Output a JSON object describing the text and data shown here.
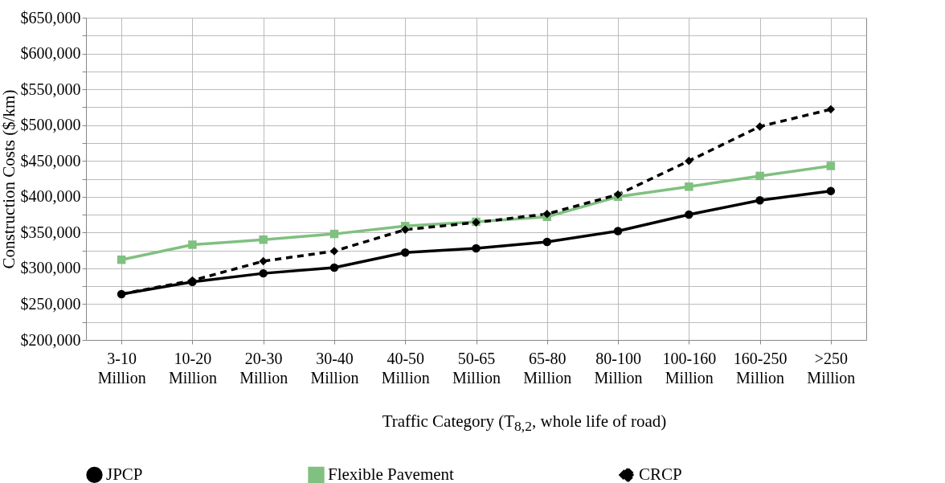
{
  "chart_data": {
    "type": "line",
    "ylabel": "Construction Costs ($/km)",
    "xlabel": "Traffic Category (T$_{8,2}$, whole life of road)",
    "categories": [
      "3-10 Million",
      "10-20 Million",
      "20-30 Million",
      "30-40 Million",
      "40-50 Million",
      "50-65 Million",
      "65-80 Million",
      "80-100 Million",
      "100-160 Million",
      "160-250 Million",
      ">250 Million"
    ],
    "series": [
      {
        "name": "JPCP",
        "color": "#000000",
        "marker": "circle",
        "line_style": "solid",
        "values": [
          264000,
          281000,
          293000,
          301000,
          322000,
          328000,
          337000,
          352000,
          375000,
          395000,
          408000
        ]
      },
      {
        "name": "Flexible Pavement",
        "color": "#80c080",
        "marker": "square",
        "line_style": "solid",
        "values": [
          312000,
          333000,
          340000,
          348000,
          359000,
          365000,
          372000,
          400000,
          414000,
          429000,
          443000
        ]
      },
      {
        "name": "CRCP",
        "color": "#000000",
        "marker": "diamond",
        "line_style": "dashed",
        "values": [
          264000,
          283000,
          310000,
          324000,
          354000,
          364000,
          376000,
          403000,
          450000,
          498000,
          522000
        ]
      }
    ],
    "ylim": [
      200000,
      650000
    ],
    "yticks": [
      {
        "value": 200000,
        "label": "$200,000"
      },
      {
        "value": 225000,
        "label": null
      },
      {
        "value": 250000,
        "label": "$250,000"
      },
      {
        "value": 275000,
        "label": null
      },
      {
        "value": 300000,
        "label": "$300,000"
      },
      {
        "value": 325000,
        "label": null
      },
      {
        "value": 350000,
        "label": "$350,000"
      },
      {
        "value": 375000,
        "label": null
      },
      {
        "value": 400000,
        "label": "$400,000"
      },
      {
        "value": 425000,
        "label": null
      },
      {
        "value": 450000,
        "label": "$450,000"
      },
      {
        "value": 475000,
        "label": null
      },
      {
        "value": 500000,
        "label": "$500,000"
      },
      {
        "value": 525000,
        "label": null
      },
      {
        "value": 550000,
        "label": "$550,000"
      },
      {
        "value": 575000,
        "label": null
      },
      {
        "value": 600000,
        "label": "$600,000"
      },
      {
        "value": 625000,
        "label": null
      },
      {
        "value": 650000,
        "label": "$650,000"
      }
    ],
    "grid": true,
    "legend": "bottom"
  }
}
